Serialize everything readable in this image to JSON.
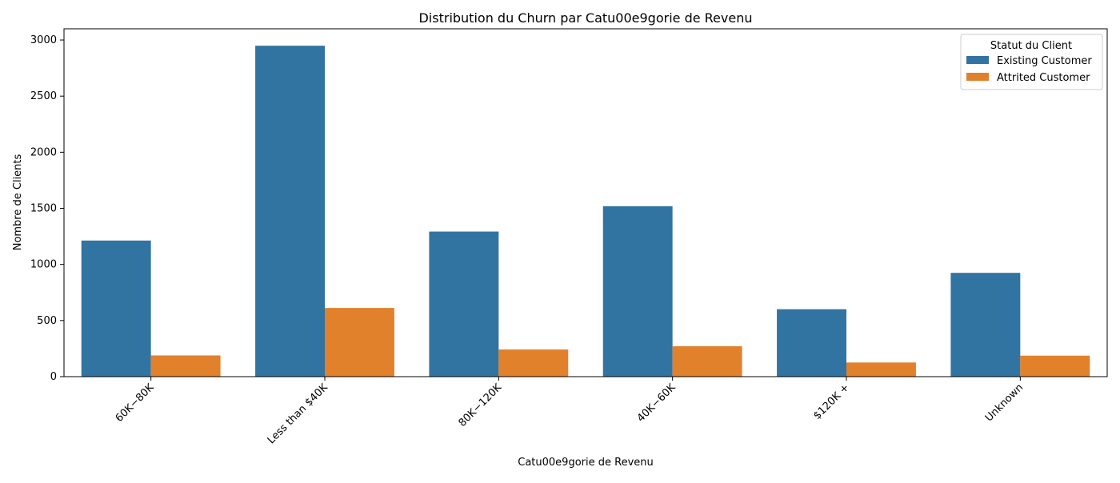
{
  "chart_data": {
    "type": "bar",
    "title": "Distribution du Churn par Catu00e9gorie de Revenu",
    "xlabel": "Catu00e9gorie de Revenu",
    "ylabel": "Nombre de Clients",
    "categories": [
      "60K−80K",
      "Less than $40K",
      "80K−120K",
      "40K−60K",
      "$120K +",
      "Unknown"
    ],
    "series": [
      {
        "name": "Existing Customer",
        "color": "#3274a1",
        "values": [
          1213,
          2949,
          1293,
          1519,
          601,
          925
        ]
      },
      {
        "name": "Attrited Customer",
        "color": "#e1812c",
        "values": [
          189,
          612,
          242,
          271,
          126,
          187
        ]
      }
    ],
    "ylim": [
      0,
      3100
    ],
    "yticks": [
      0,
      500,
      1000,
      1500,
      2000,
      2500,
      3000
    ],
    "legend": {
      "title": "Statut du Client",
      "placement": "top-right"
    },
    "grid": false
  }
}
